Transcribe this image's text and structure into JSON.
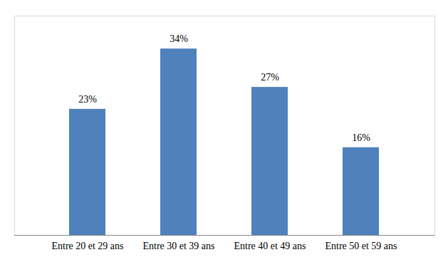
{
  "chart_data": {
    "type": "bar",
    "categories": [
      "Entre 20 et 29 ans",
      "Entre 30 et 39 ans",
      "Entre 40 et 49 ans",
      "Entre 50 et 59 ans"
    ],
    "values": [
      23,
      34,
      27,
      16
    ],
    "value_labels": [
      "23%",
      "34%",
      "27%",
      "16%"
    ],
    "color": "#4f81bd",
    "ylim": [
      0,
      40
    ],
    "grid": false,
    "data_labels": true,
    "tick_labels": "x"
  }
}
